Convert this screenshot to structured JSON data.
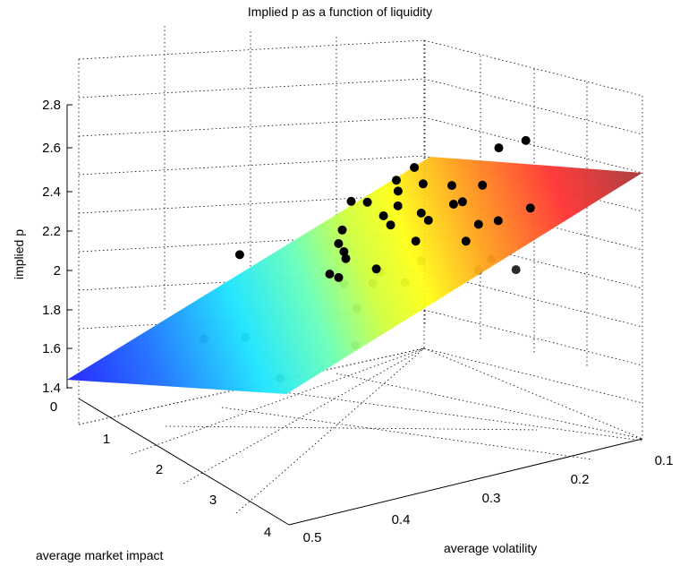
{
  "chart_data": {
    "type": "surface3d",
    "title": "Implied p as a function of liquidity",
    "zlabel": "implied p",
    "xlabel": "average market impact",
    "ylabel": "average volatility",
    "z_ticks": [
      "1.4",
      "1.6",
      "1.8",
      "2",
      "2.2",
      "2.4",
      "2.6",
      "2.8"
    ],
    "x_ticks": [
      "0",
      "1",
      "2",
      "3",
      "4"
    ],
    "y_ticks": [
      "0.1",
      "0.2",
      "0.3",
      "0.4",
      "0.5"
    ],
    "zlim": [
      1.4,
      2.8
    ],
    "xlim": [
      0,
      4
    ],
    "ylim": [
      0.1,
      0.5
    ],
    "grid": true,
    "colormap": "jet",
    "plane": {
      "corners": [
        {
          "x": 0,
          "y": 0.5,
          "z": 1.42
        },
        {
          "x": 4,
          "y": 0.5,
          "z": 1.38
        },
        {
          "x": 4,
          "y": 0.1,
          "z": 2.44
        },
        {
          "x": 0,
          "y": 0.1,
          "z": 2.44
        }
      ]
    },
    "points_above": [
      {
        "x": 2.0,
        "y": 0.43,
        "z": 2.06
      },
      {
        "x": 2.4,
        "y": 0.34,
        "z": 2.17
      },
      {
        "x": 2.2,
        "y": 0.3,
        "z": 2.3
      },
      {
        "x": 1.9,
        "y": 0.3,
        "z": 2.3
      },
      {
        "x": 2.1,
        "y": 0.32,
        "z": 2.05
      },
      {
        "x": 2.5,
        "y": 0.36,
        "z": 1.95
      },
      {
        "x": 2.7,
        "y": 0.32,
        "z": 1.97
      },
      {
        "x": 2.5,
        "y": 0.35,
        "z": 1.93
      },
      {
        "x": 2.3,
        "y": 0.28,
        "z": 2.18
      },
      {
        "x": 2.0,
        "y": 0.27,
        "z": 2.22
      },
      {
        "x": 2.1,
        "y": 0.26,
        "z": 2.27
      },
      {
        "x": 1.4,
        "y": 0.22,
        "z": 2.38
      },
      {
        "x": 1.4,
        "y": 0.2,
        "z": 2.44
      },
      {
        "x": 1.9,
        "y": 0.22,
        "z": 2.37
      },
      {
        "x": 1.6,
        "y": 0.23,
        "z": 2.33
      },
      {
        "x": 2.3,
        "y": 0.21,
        "z": 2.27
      },
      {
        "x": 2.1,
        "y": 0.2,
        "z": 2.36
      },
      {
        "x": 2.5,
        "y": 0.25,
        "z": 2.2
      },
      {
        "x": 2.3,
        "y": 0.2,
        "z": 2.28
      },
      {
        "x": 2.0,
        "y": 0.16,
        "z": 2.35
      },
      {
        "x": 2.7,
        "y": 0.22,
        "z": 2.09
      },
      {
        "x": 2.6,
        "y": 0.2,
        "z": 2.17
      },
      {
        "x": 2.8,
        "y": 0.19,
        "z": 2.19
      },
      {
        "x": 1.8,
        "y": 0.13,
        "z": 2.53
      },
      {
        "x": 1.8,
        "y": 0.1,
        "z": 2.56
      },
      {
        "x": 2.9,
        "y": 0.16,
        "z": 2.25
      },
      {
        "x": 2.2,
        "y": 0.24,
        "z": 2.23
      },
      {
        "x": 2.6,
        "y": 0.27,
        "z": 2.1
      },
      {
        "x": 2.0,
        "y": 0.32,
        "z": 2.09
      },
      {
        "x": 2.3,
        "y": 0.33,
        "z": 2.02
      }
    ],
    "points_below": [
      {
        "x": 3.4,
        "y": 0.47,
        "z": 1.45
      },
      {
        "x": 2.5,
        "y": 0.5,
        "z": 1.65
      },
      {
        "x": 2.6,
        "y": 0.46,
        "z": 1.65
      },
      {
        "x": 3.3,
        "y": 0.38,
        "z": 1.6
      },
      {
        "x": 3.0,
        "y": 0.36,
        "z": 1.78
      },
      {
        "x": 2.6,
        "y": 0.35,
        "z": 1.9
      },
      {
        "x": 2.8,
        "y": 0.33,
        "z": 1.9
      },
      {
        "x": 2.6,
        "y": 0.31,
        "z": 1.95
      },
      {
        "x": 2.9,
        "y": 0.3,
        "z": 1.9
      },
      {
        "x": 2.7,
        "y": 0.27,
        "z": 2.0
      },
      {
        "x": 3.1,
        "y": 0.23,
        "z": 1.95
      },
      {
        "x": 3.0,
        "y": 0.21,
        "z": 2.0
      },
      {
        "x": 3.3,
        "y": 0.2,
        "z": 1.95
      }
    ]
  }
}
